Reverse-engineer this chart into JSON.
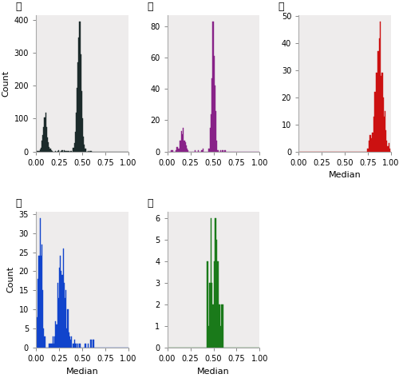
{
  "colors": {
    "A": "#1c2b2b",
    "B": "#882288",
    "C": "#cc1111",
    "D": "#1144cc",
    "E": "#1a7a1a"
  },
  "xlim": [
    0.0,
    1.0
  ],
  "xticks": [
    0.0,
    0.25,
    0.5,
    0.75,
    1.0
  ],
  "xticklabels": [
    "0.00",
    "0.25",
    "0.50",
    "0.75",
    "1.00"
  ],
  "xlabel": "Median",
  "ylabel": "Count",
  "n_bins": 100,
  "bg_color": "#eeecec",
  "panel_label_fontsize": 9,
  "axis_label_fontsize": 8,
  "tick_fontsize": 7
}
